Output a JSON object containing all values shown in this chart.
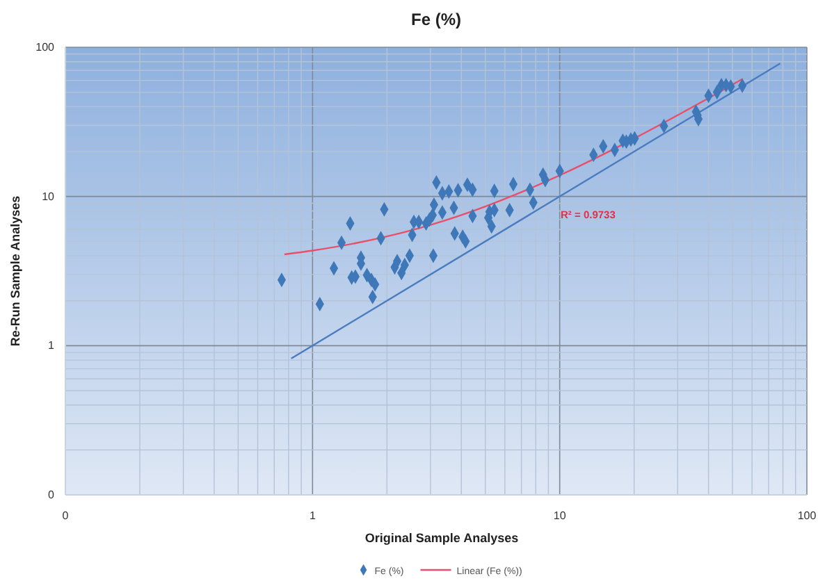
{
  "chart_data": {
    "type": "scatter",
    "title": "Fe (%)",
    "xlabel": "Original Sample Analyses",
    "ylabel": "Re-Run Sample Analyses",
    "log": "xy",
    "grid": true,
    "legend": "bottom",
    "marker": "diamond",
    "xlim": [
      0.1,
      100
    ],
    "ylim": [
      0.1,
      100
    ],
    "xticks": [
      {
        "value": 0.1,
        "label": "0"
      },
      1,
      10,
      100
    ],
    "yticks": [
      {
        "value": 0.1,
        "label": "0"
      },
      1,
      10,
      100
    ],
    "annotations": [
      "R² = 0.9733"
    ],
    "series": [
      {
        "name": "Fe (%)",
        "color": "#3f78b8",
        "x": [
          0.75,
          1.07,
          1.22,
          1.31,
          1.42,
          1.44,
          1.49,
          1.57,
          1.57,
          1.66,
          1.73,
          1.79,
          1.75,
          1.89,
          1.95,
          2.15,
          2.2,
          2.29,
          2.36,
          2.47,
          2.53,
          2.57,
          2.69,
          2.88,
          2.97,
          3.06,
          3.1,
          3.08,
          3.17,
          3.35,
          3.35,
          3.56,
          3.73,
          3.76,
          3.88,
          4.05,
          4.16,
          4.23,
          4.44,
          4.44,
          5.14,
          5.2,
          5.3,
          5.44,
          5.44,
          6.27,
          6.49,
          7.58,
          7.82,
          8.56,
          8.74,
          10,
          13.7,
          15,
          16.7,
          18,
          18.6,
          19.4,
          20.1,
          26.4,
          35.6,
          36.1,
          36.4,
          40,
          43.3,
          45.1,
          47.1,
          49.2,
          54.8
        ],
        "values": [
          2.76,
          1.9,
          3.3,
          4.9,
          6.6,
          2.86,
          2.9,
          3.55,
          3.89,
          2.97,
          2.76,
          2.57,
          2.12,
          5.25,
          8.2,
          3.35,
          3.68,
          3.07,
          3.47,
          4.01,
          5.53,
          6.75,
          6.75,
          6.6,
          7,
          7.5,
          8.8,
          4.01,
          12.4,
          10.5,
          7.8,
          10.8,
          8.4,
          5.65,
          11,
          5.37,
          5,
          12,
          11.1,
          7.4,
          7.2,
          7.9,
          6.3,
          10.9,
          8.1,
          8.1,
          12.1,
          11.1,
          9.1,
          14,
          12.9,
          14.8,
          19,
          21.7,
          20.5,
          23.6,
          23.3,
          24.1,
          24.5,
          29.7,
          37,
          35,
          33,
          47.3,
          50,
          55.7,
          55.7,
          54.5,
          55.3
        ]
      },
      {
        "name": "Linear (Fe (%))",
        "type": "line",
        "color": "#e8506a",
        "marker": "none",
        "x": [
          0.77,
          1,
          1.5,
          2,
          3,
          5,
          7,
          10,
          15,
          20,
          30,
          40,
          55
        ],
        "values": [
          4.09,
          4.34,
          4.87,
          5.4,
          6.45,
          8.57,
          10.69,
          13.86,
          19.15,
          24.44,
          35.02,
          45.6,
          61.47
        ]
      },
      {
        "type": "line",
        "color": "#4a7cc0",
        "marker": "none",
        "x": [
          0.82,
          78
        ],
        "values": [
          0.82,
          78
        ]
      }
    ]
  }
}
